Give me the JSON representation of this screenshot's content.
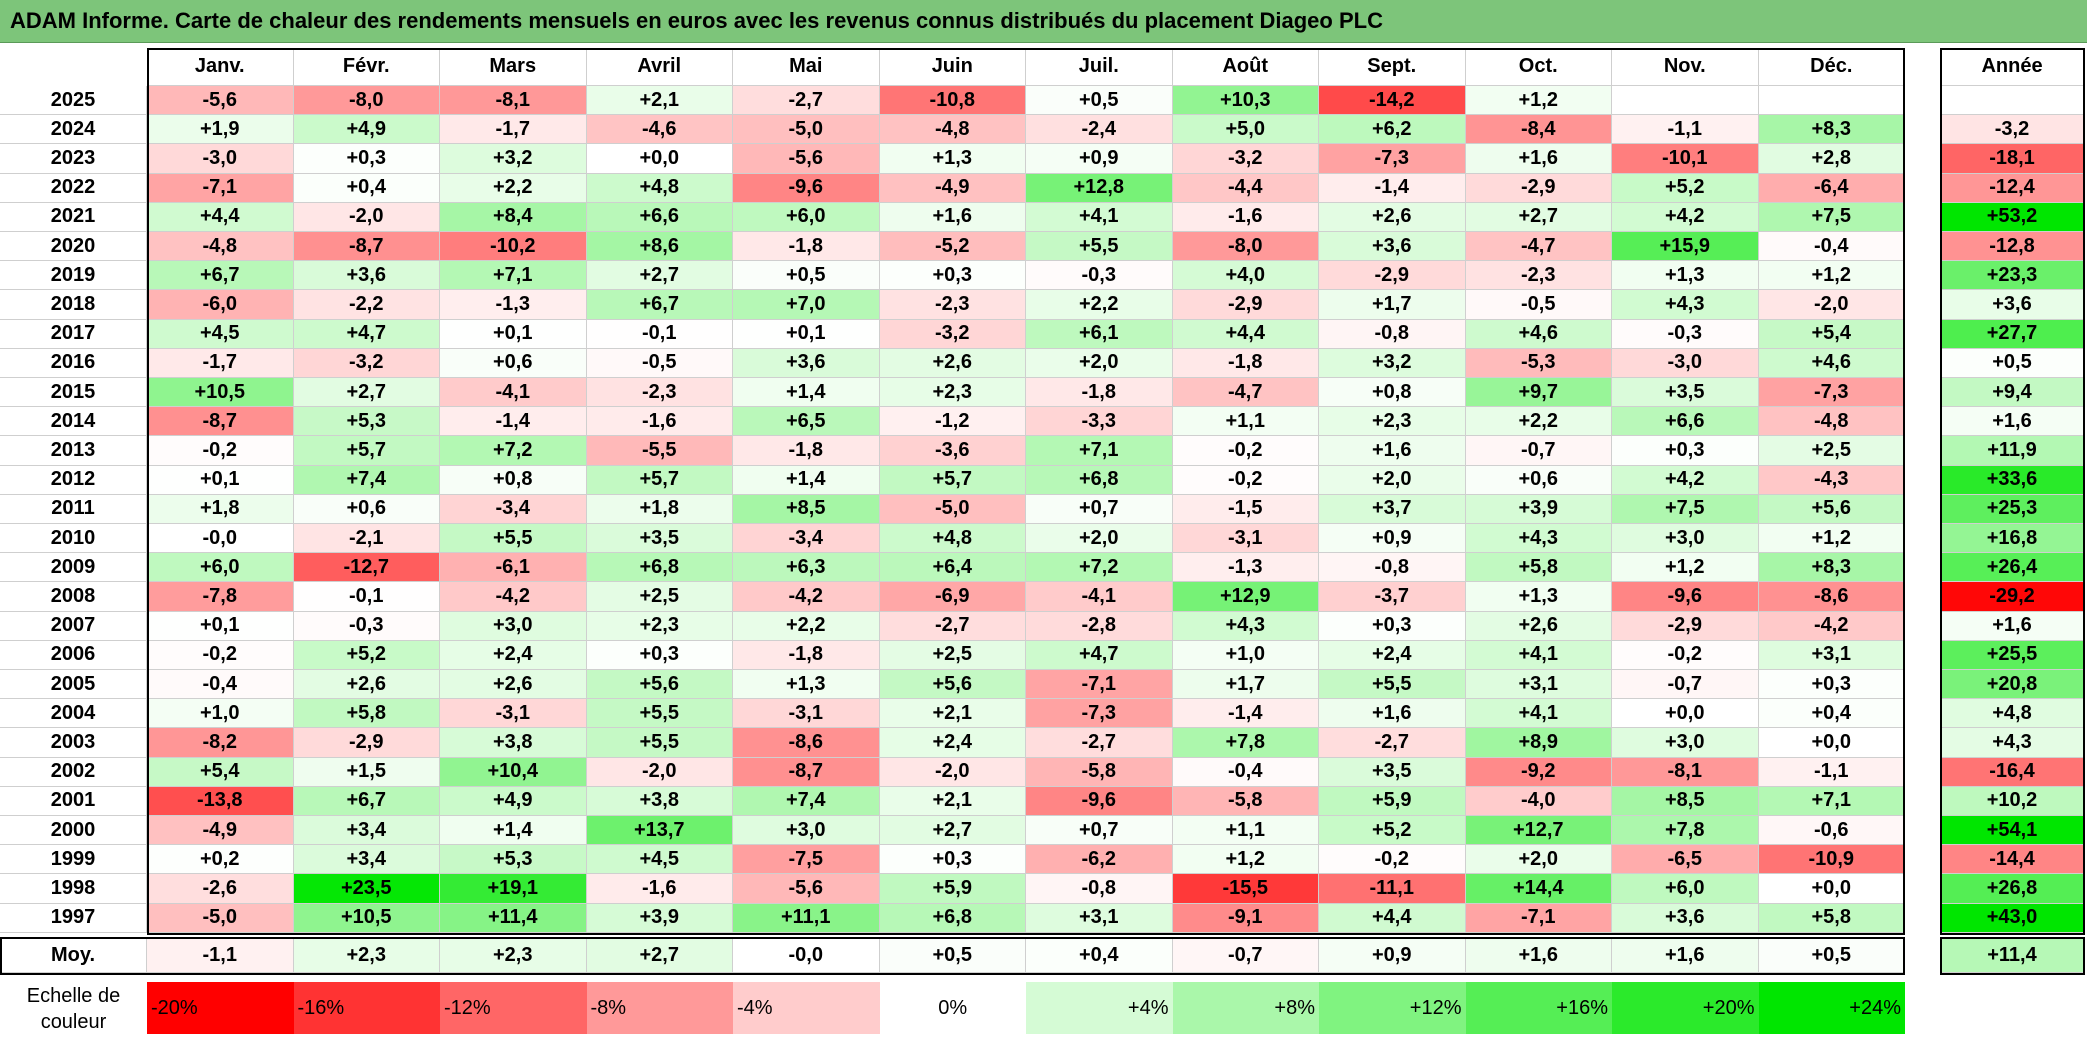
{
  "title": "ADAM Informe. Carte de chaleur des rendements mensuels en euros avec les revenus connus distribués du placement Diageo PLC",
  "months": [
    "Janv.",
    "Févr.",
    "Mars",
    "Avril",
    "Mai",
    "Juin",
    "Juil.",
    "Août",
    "Sept.",
    "Oct.",
    "Nov.",
    "Déc."
  ],
  "year_header": "Année",
  "avg_label": "Moy.",
  "scale_label_line1": "Echelle de",
  "scale_label_line2": "couleur",
  "scale": [
    "-20%",
    "-16%",
    "-12%",
    "-8%",
    "-4%",
    "0%",
    "+4%",
    "+8%",
    "+12%",
    "+16%",
    "+20%",
    "+24%"
  ],
  "colors": {
    "title_bg": "#7dc57a",
    "negative": "#ff0000",
    "positive": "#00e000",
    "neutral": "#ffffff"
  },
  "chart_data": {
    "type": "heatmap",
    "title": "ADAM Informe. Carte de chaleur des rendements mensuels en euros avec les revenus connus distribués du placement Diageo PLC",
    "columns": [
      "Janv.",
      "Févr.",
      "Mars",
      "Avril",
      "Mai",
      "Juin",
      "Juil.",
      "Août",
      "Sept.",
      "Oct.",
      "Nov.",
      "Déc."
    ],
    "rows": [
      {
        "year": "2025",
        "values": [
          "-5,6",
          "-8,0",
          "-8,1",
          "+2,1",
          "-2,7",
          "-10,8",
          "+0,5",
          "+10,3",
          "-14,2",
          "+1,2",
          "",
          ""
        ],
        "annual": ""
      },
      {
        "year": "2024",
        "values": [
          "+1,9",
          "+4,9",
          "-1,7",
          "-4,6",
          "-5,0",
          "-4,8",
          "-2,4",
          "+5,0",
          "+6,2",
          "-8,4",
          "-1,1",
          "+8,3"
        ],
        "annual": "-3,2"
      },
      {
        "year": "2023",
        "values": [
          "-3,0",
          "+0,3",
          "+3,2",
          "+0,0",
          "-5,6",
          "+1,3",
          "+0,9",
          "-3,2",
          "-7,3",
          "+1,6",
          "-10,1",
          "+2,8"
        ],
        "annual": "-18,1"
      },
      {
        "year": "2022",
        "values": [
          "-7,1",
          "+0,4",
          "+2,2",
          "+4,8",
          "-9,6",
          "-4,9",
          "+12,8",
          "-4,4",
          "-1,4",
          "-2,9",
          "+5,2",
          "-6,4"
        ],
        "annual": "-12,4"
      },
      {
        "year": "2021",
        "values": [
          "+4,4",
          "-2,0",
          "+8,4",
          "+6,6",
          "+6,0",
          "+1,6",
          "+4,1",
          "-1,6",
          "+2,6",
          "+2,7",
          "+4,2",
          "+7,5"
        ],
        "annual": "+53,2"
      },
      {
        "year": "2020",
        "values": [
          "-4,8",
          "-8,7",
          "-10,2",
          "+8,6",
          "-1,8",
          "-5,2",
          "+5,5",
          "-8,0",
          "+3,6",
          "-4,7",
          "+15,9",
          "-0,4"
        ],
        "annual": "-12,8"
      },
      {
        "year": "2019",
        "values": [
          "+6,7",
          "+3,6",
          "+7,1",
          "+2,7",
          "+0,5",
          "+0,3",
          "-0,3",
          "+4,0",
          "-2,9",
          "-2,3",
          "+1,3",
          "+1,2"
        ],
        "annual": "+23,3"
      },
      {
        "year": "2018",
        "values": [
          "-6,0",
          "-2,2",
          "-1,3",
          "+6,7",
          "+7,0",
          "-2,3",
          "+2,2",
          "-2,9",
          "+1,7",
          "-0,5",
          "+4,3",
          "-2,0"
        ],
        "annual": "+3,6"
      },
      {
        "year": "2017",
        "values": [
          "+4,5",
          "+4,7",
          "+0,1",
          "-0,1",
          "+0,1",
          "-3,2",
          "+6,1",
          "+4,4",
          "-0,8",
          "+4,6",
          "-0,3",
          "+5,4"
        ],
        "annual": "+27,7"
      },
      {
        "year": "2016",
        "values": [
          "-1,7",
          "-3,2",
          "+0,6",
          "-0,5",
          "+3,6",
          "+2,6",
          "+2,0",
          "-1,8",
          "+3,2",
          "-5,3",
          "-3,0",
          "+4,6"
        ],
        "annual": "+0,5"
      },
      {
        "year": "2015",
        "values": [
          "+10,5",
          "+2,7",
          "-4,1",
          "-2,3",
          "+1,4",
          "+2,3",
          "-1,8",
          "-4,7",
          "+0,8",
          "+9,7",
          "+3,5",
          "-7,3"
        ],
        "annual": "+9,4"
      },
      {
        "year": "2014",
        "values": [
          "-8,7",
          "+5,3",
          "-1,4",
          "-1,6",
          "+6,5",
          "-1,2",
          "-3,3",
          "+1,1",
          "+2,3",
          "+2,2",
          "+6,6",
          "-4,8"
        ],
        "annual": "+1,6"
      },
      {
        "year": "2013",
        "values": [
          "-0,2",
          "+5,7",
          "+7,2",
          "-5,5",
          "-1,8",
          "-3,6",
          "+7,1",
          "-0,2",
          "+1,6",
          "-0,7",
          "+0,3",
          "+2,5"
        ],
        "annual": "+11,9"
      },
      {
        "year": "2012",
        "values": [
          "+0,1",
          "+7,4",
          "+0,8",
          "+5,7",
          "+1,4",
          "+5,7",
          "+6,8",
          "-0,2",
          "+2,0",
          "+0,6",
          "+4,2",
          "-4,3"
        ],
        "annual": "+33,6"
      },
      {
        "year": "2011",
        "values": [
          "+1,8",
          "+0,6",
          "-3,4",
          "+1,8",
          "+8,5",
          "-5,0",
          "+0,7",
          "-1,5",
          "+3,7",
          "+3,9",
          "+7,5",
          "+5,6"
        ],
        "annual": "+25,3"
      },
      {
        "year": "2010",
        "values": [
          "-0,0",
          "-2,1",
          "+5,5",
          "+3,5",
          "-3,4",
          "+4,8",
          "+2,0",
          "-3,1",
          "+0,9",
          "+4,3",
          "+3,0",
          "+1,2"
        ],
        "annual": "+16,8"
      },
      {
        "year": "2009",
        "values": [
          "+6,0",
          "-12,7",
          "-6,1",
          "+6,8",
          "+6,3",
          "+6,4",
          "+7,2",
          "-1,3",
          "-0,8",
          "+5,8",
          "+1,2",
          "+8,3"
        ],
        "annual": "+26,4"
      },
      {
        "year": "2008",
        "values": [
          "-7,8",
          "-0,1",
          "-4,2",
          "+2,5",
          "-4,2",
          "-6,9",
          "-4,1",
          "+12,9",
          "-3,7",
          "+1,3",
          "-9,6",
          "-8,6"
        ],
        "annual": "-29,2"
      },
      {
        "year": "2007",
        "values": [
          "+0,1",
          "-0,3",
          "+3,0",
          "+2,3",
          "+2,2",
          "-2,7",
          "-2,8",
          "+4,3",
          "+0,3",
          "+2,6",
          "-2,9",
          "-4,2"
        ],
        "annual": "+1,6"
      },
      {
        "year": "2006",
        "values": [
          "-0,2",
          "+5,2",
          "+2,4",
          "+0,3",
          "-1,8",
          "+2,5",
          "+4,7",
          "+1,0",
          "+2,4",
          "+4,1",
          "-0,2",
          "+3,1"
        ],
        "annual": "+25,5"
      },
      {
        "year": "2005",
        "values": [
          "-0,4",
          "+2,6",
          "+2,6",
          "+5,6",
          "+1,3",
          "+5,6",
          "-7,1",
          "+1,7",
          "+5,5",
          "+3,1",
          "-0,7",
          "+0,3"
        ],
        "annual": "+20,8"
      },
      {
        "year": "2004",
        "values": [
          "+1,0",
          "+5,8",
          "-3,1",
          "+5,5",
          "-3,1",
          "+2,1",
          "-7,3",
          "-1,4",
          "+1,6",
          "+4,1",
          "+0,0",
          "+0,4"
        ],
        "annual": "+4,8"
      },
      {
        "year": "2003",
        "values": [
          "-8,2",
          "-2,9",
          "+3,8",
          "+5,5",
          "-8,6",
          "+2,4",
          "-2,7",
          "+7,8",
          "-2,7",
          "+8,9",
          "+3,0",
          "+0,0"
        ],
        "annual": "+4,3"
      },
      {
        "year": "2002",
        "values": [
          "+5,4",
          "+1,5",
          "+10,4",
          "-2,0",
          "-8,7",
          "-2,0",
          "-5,8",
          "-0,4",
          "+3,5",
          "-9,2",
          "-8,1",
          "-1,1"
        ],
        "annual": "-16,4"
      },
      {
        "year": "2001",
        "values": [
          "-13,8",
          "+6,7",
          "+4,9",
          "+3,8",
          "+7,4",
          "+2,1",
          "-9,6",
          "-5,8",
          "+5,9",
          "-4,0",
          "+8,5",
          "+7,1"
        ],
        "annual": "+10,2"
      },
      {
        "year": "2000",
        "values": [
          "-4,9",
          "+3,4",
          "+1,4",
          "+13,7",
          "+3,0",
          "+2,7",
          "+0,7",
          "+1,1",
          "+5,2",
          "+12,7",
          "+7,8",
          "-0,6"
        ],
        "annual": "+54,1"
      },
      {
        "year": "1999",
        "values": [
          "+0,2",
          "+3,4",
          "+5,3",
          "+4,5",
          "-7,5",
          "+0,3",
          "-6,2",
          "+1,2",
          "-0,2",
          "+2,0",
          "-6,5",
          "-10,9"
        ],
        "annual": "-14,4"
      },
      {
        "year": "1998",
        "values": [
          "-2,6",
          "+23,5",
          "+19,1",
          "-1,6",
          "-5,6",
          "+5,9",
          "-0,8",
          "-15,5",
          "-11,1",
          "+14,4",
          "+6,0",
          "+0,0"
        ],
        "annual": "+26,8"
      },
      {
        "year": "1997",
        "values": [
          "-5,0",
          "+10,5",
          "+11,4",
          "+3,9",
          "+11,1",
          "+6,8",
          "+3,1",
          "-9,1",
          "+4,4",
          "-7,1",
          "+3,6",
          "+5,8"
        ],
        "annual": "+43,0"
      }
    ],
    "average": {
      "values": [
        "-1,1",
        "+2,3",
        "+2,3",
        "+2,7",
        "-0,0",
        "+0,5",
        "+0,4",
        "-0,7",
        "+0,9",
        "+1,6",
        "+1,6",
        "+0,5"
      ],
      "annual": "+11,4"
    }
  }
}
